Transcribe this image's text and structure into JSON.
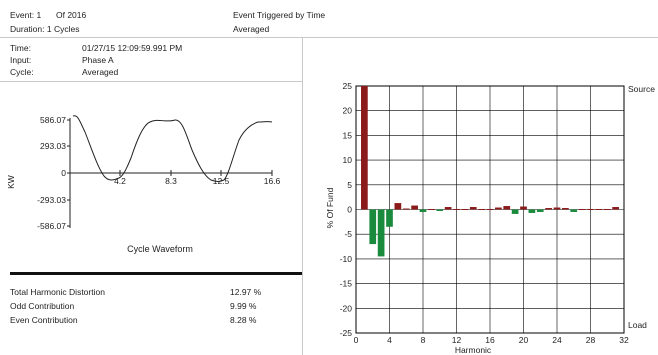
{
  "header": {
    "event_label": "Event: 1",
    "event_of": "Of 2016",
    "duration": "Duration: 1 Cycles",
    "trigger": "Event Triggered by Time",
    "trigger_mode": "Averaged"
  },
  "info": {
    "time_label": "Time:",
    "time_value": "01/27/15 12:09:59.991 PM",
    "input_label": "Input:",
    "input_value": "Phase A",
    "cycle_label": "Cycle:",
    "cycle_value": "Averaged"
  },
  "waveform": {
    "ylabel": "KW",
    "title": "Cycle Waveform",
    "y_ticks": [
      "586.07",
      "293.03",
      "0",
      "-293.03",
      "-586.07"
    ],
    "x_ticks": [
      "4.2",
      "8.3",
      "12.5",
      "16.6"
    ]
  },
  "summary": {
    "rows": [
      {
        "label": "Total Harmonic Distortion",
        "value": "12.97 %"
      },
      {
        "label": "Odd Contribution",
        "value": "9.99 %"
      },
      {
        "label": "Even Contribution",
        "value": "8.28 %"
      }
    ]
  },
  "colors": {
    "source_bar": "#8b1a1a",
    "load_bar": "#1a8a3c",
    "grid": "#000000"
  },
  "chart_data": {
    "type": "bar",
    "xlabel": "Harmonic",
    "ylabel": "% Of Fund",
    "top_right_label": "Source",
    "bottom_right_label": "Load",
    "xlim": [
      0,
      32
    ],
    "ylim": [
      -25,
      25
    ],
    "x_ticks": [
      0,
      4,
      8,
      12,
      16,
      20,
      24,
      28,
      32
    ],
    "y_ticks": [
      25,
      20,
      15,
      10,
      5,
      0,
      -5,
      -10,
      -15,
      -20,
      -25
    ],
    "harmonics": [
      1,
      2,
      3,
      4,
      5,
      6,
      7,
      8,
      9,
      10,
      11,
      12,
      13,
      14,
      15,
      16,
      17,
      18,
      19,
      20,
      21,
      22,
      23,
      24,
      25,
      26,
      27,
      28,
      29,
      30,
      31
    ],
    "values": [
      25,
      -7,
      -9.5,
      -3.5,
      1.3,
      0.2,
      0.8,
      -0.5,
      0.1,
      -0.3,
      0.5,
      0.1,
      0.1,
      0.5,
      0.1,
      0.1,
      0.4,
      0.7,
      -0.9,
      0.6,
      -0.7,
      -0.5,
      0.3,
      0.4,
      0.3,
      -0.5,
      0.1,
      0.1,
      0.1,
      0.1,
      0.5
    ]
  }
}
